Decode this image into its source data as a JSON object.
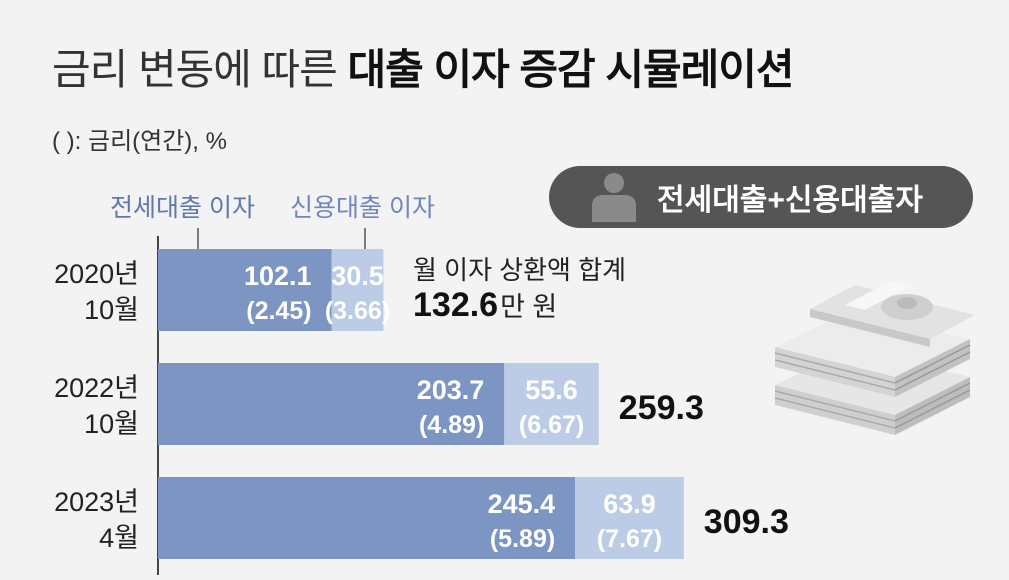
{
  "header": {
    "title_light": "금리 변동에 따른",
    "title_bold": "대출 이자 증감 시뮬레이션",
    "unit_note": "( ): 금리(연간), %"
  },
  "legend": {
    "jeonse": "전세대출 이자",
    "credit": "신용대출 이자"
  },
  "badge": {
    "icon": "person-icon",
    "label": "전세대출+신용대출자"
  },
  "sum_note": {
    "label": "월 이자 상환액 합계",
    "unit": "만 원"
  },
  "colors": {
    "jeonse": "#7c95c3",
    "credit": "#bccbe6",
    "background": "#f3f3f3",
    "badge": "#555555"
  },
  "chart_data": {
    "type": "bar",
    "orientation": "horizontal",
    "stacked": true,
    "categories": [
      {
        "line1": "2020년",
        "line2": "10월"
      },
      {
        "line1": "2022년",
        "line2": "10월"
      },
      {
        "line1": "2023년",
        "line2": "4월"
      }
    ],
    "series": [
      {
        "name": "전세대출 이자",
        "values": [
          102.1,
          203.7,
          245.4
        ],
        "labels": [
          "102.1",
          "203.7",
          "245.4"
        ],
        "rates": [
          "(2.45)",
          "(4.89)",
          "(5.89)"
        ]
      },
      {
        "name": "신용대출 이자",
        "values": [
          30.5,
          55.6,
          63.9
        ],
        "labels": [
          "30.5",
          "55.6",
          "63.9"
        ],
        "rates": [
          "(3.66)",
          "(6.67)",
          "(7.67)"
        ]
      }
    ],
    "totals": [
      132.6,
      259.3,
      309.3
    ],
    "total_labels": [
      "132.6",
      "259.3",
      "309.3"
    ]
  }
}
